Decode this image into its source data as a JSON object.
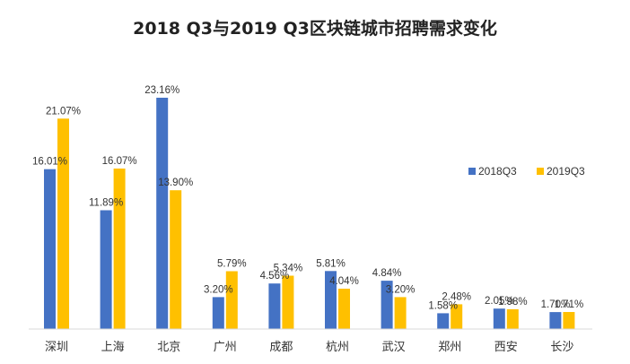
{
  "chart_data": {
    "type": "bar",
    "title": "2018 Q3与2019 Q3区块链城市招聘需求变化",
    "categories": [
      "深圳",
      "上海",
      "北京",
      "广州",
      "成都",
      "杭州",
      "武汉",
      "郑州",
      "西安",
      "长沙"
    ],
    "series": [
      {
        "name": "2018Q3",
        "color": "#4472C4",
        "values": [
          16.01,
          11.89,
          23.16,
          3.2,
          4.56,
          5.81,
          4.84,
          1.58,
          2.05,
          1.7
        ],
        "labels": [
          "16.01%",
          "11.89%",
          "23.16%",
          "3.20%",
          "4.56%",
          "5.81%",
          "4.84%",
          "1.58%",
          "2.05%",
          "1.70%"
        ]
      },
      {
        "name": "2019Q3",
        "color": "#FFC000",
        "values": [
          21.07,
          16.07,
          13.9,
          5.79,
          5.34,
          4.04,
          3.2,
          2.48,
          1.98,
          1.71
        ],
        "labels": [
          "21.07%",
          "16.07%",
          "13.90%",
          "5.79%",
          "5.34%",
          "4.04%",
          "3.20%",
          "2.48%",
          "1.98%",
          "1.71%"
        ]
      }
    ],
    "ylim": [
      0,
      25
    ],
    "grid": false,
    "legend": "right"
  }
}
